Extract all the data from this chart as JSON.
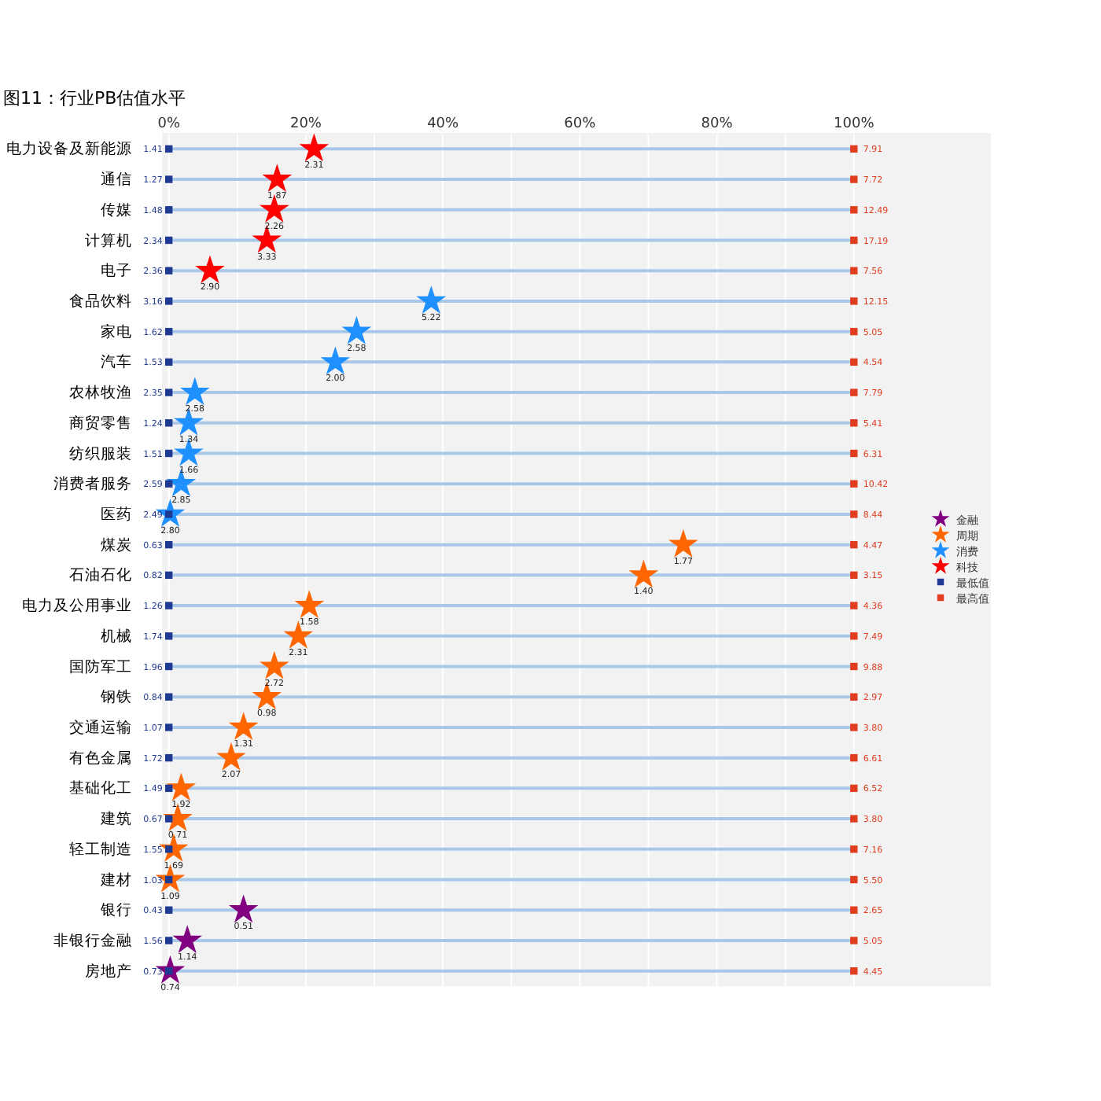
{
  "chart_data": {
    "type": "scatter",
    "orientation": "horizontal",
    "title": "图11：行业PB估值水平",
    "categories": [
      "电力设备及新能源",
      "通信",
      "传媒",
      "计算机",
      "电子",
      "食品饮料",
      "家电",
      "汽车",
      "农林牧渔",
      "商贸零售",
      "纺织服装",
      "消费者服务",
      "医药",
      "煤炭",
      "石油石化",
      "电力及公用事业",
      "机械",
      "国防军工",
      "钢铁",
      "交通运输",
      "有色金属",
      "基础化工",
      "建筑",
      "轻工制造",
      "建材",
      "银行",
      "非银行金融",
      "房地产"
    ],
    "xlim": [
      -1,
      120
    ],
    "xticks": [
      {
        "value": 0,
        "label": "0%"
      },
      {
        "value": 10,
        "label": null
      },
      {
        "value": 20,
        "label": "20%"
      },
      {
        "value": 30,
        "label": null
      },
      {
        "value": 40,
        "label": "40%"
      },
      {
        "value": 50,
        "label": null
      },
      {
        "value": 60,
        "label": "60%"
      },
      {
        "value": 70,
        "label": null
      },
      {
        "value": 80,
        "label": "80%"
      },
      {
        "value": 90,
        "label": null
      },
      {
        "value": 100,
        "label": "100%"
      }
    ],
    "grid": true,
    "legend": "right",
    "marker": "star",
    "series": [
      {
        "name": "金融",
        "color": "#800080",
        "values": [
          null,
          null,
          null,
          null,
          null,
          null,
          null,
          null,
          null,
          null,
          null,
          null,
          null,
          null,
          null,
          null,
          null,
          null,
          null,
          null,
          null,
          null,
          null,
          null,
          null,
          10.9,
          2.7,
          0.2
        ]
      },
      {
        "name": "周期",
        "color": "#ff6600",
        "values": [
          null,
          null,
          null,
          null,
          null,
          null,
          null,
          null,
          null,
          null,
          null,
          null,
          null,
          75.1,
          69.3,
          20.5,
          18.9,
          15.4,
          14.3,
          10.9,
          9.1,
          1.8,
          1.3,
          0.7,
          0.2,
          null,
          null,
          null
        ]
      },
      {
        "name": "消费",
        "color": "#1e90ff",
        "values": [
          null,
          null,
          null,
          null,
          null,
          38.3,
          27.4,
          24.3,
          3.8,
          2.9,
          2.9,
          1.8,
          0.2,
          null,
          null,
          null,
          null,
          null,
          null,
          null,
          null,
          null,
          null,
          null,
          null,
          null,
          null,
          null
        ]
      },
      {
        "name": "科技",
        "color": "#ff0000",
        "values": [
          21.2,
          15.8,
          15.4,
          14.3,
          6.0,
          null,
          null,
          null,
          null,
          null,
          null,
          null,
          null,
          null,
          null,
          null,
          null,
          null,
          null,
          null,
          null,
          null,
          null,
          null,
          null,
          null,
          null,
          null
        ]
      },
      {
        "name": "最低值",
        "color": "#1f3a93",
        "marker": "square",
        "values": [
          0,
          0,
          0,
          0,
          0,
          0,
          0,
          0,
          0,
          0,
          0,
          0,
          0,
          0,
          0,
          0,
          0,
          0,
          0,
          0,
          0,
          0,
          0,
          0,
          0,
          0,
          0,
          0
        ]
      },
      {
        "name": "最高值",
        "color": "#e03c1e",
        "marker": "square",
        "values": [
          100,
          100,
          100,
          100,
          100,
          100,
          100,
          100,
          100,
          100,
          100,
          100,
          100,
          100,
          100,
          100,
          100,
          100,
          100,
          100,
          100,
          100,
          100,
          100,
          100,
          100,
          100,
          100
        ]
      }
    ],
    "annotations": [
      {
        "text": "2.31",
        "x": 21.2,
        "y": "电力设备及新能源"
      },
      {
        "text": "1.87",
        "x": 15.8,
        "y": "通信"
      },
      {
        "text": "2.26",
        "x": 15.4,
        "y": "传媒"
      },
      {
        "text": "3.33",
        "x": 14.3,
        "y": "计算机"
      },
      {
        "text": "2.90",
        "x": 6.0,
        "y": "电子"
      },
      {
        "text": "5.22",
        "x": 38.3,
        "y": "食品饮料"
      },
      {
        "text": "2.58",
        "x": 27.4,
        "y": "家电"
      },
      {
        "text": "2.00",
        "x": 24.3,
        "y": "汽车"
      },
      {
        "text": "2.58",
        "x": 3.8,
        "y": "农林牧渔"
      },
      {
        "text": "1.34",
        "x": 2.9,
        "y": "商贸零售"
      },
      {
        "text": "1.66",
        "x": 2.9,
        "y": "纺织服装"
      },
      {
        "text": "2.85",
        "x": 1.8,
        "y": "消费者服务"
      },
      {
        "text": "2.80",
        "x": 0.2,
        "y": "医药"
      },
      {
        "text": "1.77",
        "x": 75.1,
        "y": "煤炭"
      },
      {
        "text": "1.40",
        "x": 69.3,
        "y": "石油石化"
      },
      {
        "text": "1.58",
        "x": 20.5,
        "y": "电力及公用事业"
      },
      {
        "text": "2.31",
        "x": 18.9,
        "y": "机械"
      },
      {
        "text": "2.72",
        "x": 15.4,
        "y": "国防军工"
      },
      {
        "text": "0.98",
        "x": 14.3,
        "y": "钢铁"
      },
      {
        "text": "1.31",
        "x": 10.9,
        "y": "交通运输"
      },
      {
        "text": "2.07",
        "x": 9.1,
        "y": "有色金属"
      },
      {
        "text": "1.92",
        "x": 1.8,
        "y": "基础化工"
      },
      {
        "text": "0.71",
        "x": 1.3,
        "y": "建筑"
      },
      {
        "text": "1.69",
        "x": 0.7,
        "y": "轻工制造"
      },
      {
        "text": "1.09",
        "x": 0.2,
        "y": "建材"
      },
      {
        "text": "0.51",
        "x": 10.9,
        "y": "银行"
      },
      {
        "text": "1.14",
        "x": 2.7,
        "y": "非银行金融"
      },
      {
        "text": "0.74",
        "x": 0.2,
        "y": "房地产"
      },
      {
        "text": "1.41",
        "x": 0,
        "y": "电力设备及新能源"
      },
      {
        "text": "1.27",
        "x": 0,
        "y": "通信"
      },
      {
        "text": "1.48",
        "x": 0,
        "y": "传媒"
      },
      {
        "text": "2.34",
        "x": 0,
        "y": "计算机"
      },
      {
        "text": "2.36",
        "x": 0,
        "y": "电子"
      },
      {
        "text": "3.16",
        "x": 0,
        "y": "食品饮料"
      },
      {
        "text": "1.62",
        "x": 0,
        "y": "家电"
      },
      {
        "text": "1.53",
        "x": 0,
        "y": "汽车"
      },
      {
        "text": "2.35",
        "x": 0,
        "y": "农林牧渔"
      },
      {
        "text": "1.24",
        "x": 0,
        "y": "商贸零售"
      },
      {
        "text": "1.51",
        "x": 0,
        "y": "纺织服装"
      },
      {
        "text": "2.59",
        "x": 0,
        "y": "消费者服务"
      },
      {
        "text": "2.49",
        "x": 0,
        "y": "医药"
      },
      {
        "text": "0.63",
        "x": 0,
        "y": "煤炭"
      },
      {
        "text": "0.82",
        "x": 0,
        "y": "石油石化"
      },
      {
        "text": "1.26",
        "x": 0,
        "y": "电力及公用事业"
      },
      {
        "text": "1.74",
        "x": 0,
        "y": "机械"
      },
      {
        "text": "1.96",
        "x": 0,
        "y": "国防军工"
      },
      {
        "text": "0.84",
        "x": 0,
        "y": "钢铁"
      },
      {
        "text": "1.07",
        "x": 0,
        "y": "交通运输"
      },
      {
        "text": "1.72",
        "x": 0,
        "y": "有色金属"
      },
      {
        "text": "1.49",
        "x": 0,
        "y": "基础化工"
      },
      {
        "text": "0.67",
        "x": 0,
        "y": "建筑"
      },
      {
        "text": "1.55",
        "x": 0,
        "y": "轻工制造"
      },
      {
        "text": "1.03",
        "x": 0,
        "y": "建材"
      },
      {
        "text": "0.43",
        "x": 0,
        "y": "银行"
      },
      {
        "text": "1.56",
        "x": 0,
        "y": "非银行金融"
      },
      {
        "text": "0.73",
        "x": 0,
        "y": "房地产"
      },
      {
        "text": "7.91",
        "x": 100,
        "y": "电力设备及新能源"
      },
      {
        "text": "7.72",
        "x": 100,
        "y": "通信"
      },
      {
        "text": "12.49",
        "x": 100,
        "y": "传媒"
      },
      {
        "text": "17.19",
        "x": 100,
        "y": "计算机"
      },
      {
        "text": "7.56",
        "x": 100,
        "y": "电子"
      },
      {
        "text": "12.15",
        "x": 100,
        "y": "食品饮料"
      },
      {
        "text": "5.05",
        "x": 100,
        "y": "家电"
      },
      {
        "text": "4.54",
        "x": 100,
        "y": "汽车"
      },
      {
        "text": "7.79",
        "x": 100,
        "y": "农林牧渔"
      },
      {
        "text": "5.41",
        "x": 100,
        "y": "商贸零售"
      },
      {
        "text": "6.31",
        "x": 100,
        "y": "纺织服装"
      },
      {
        "text": "10.42",
        "x": 100,
        "y": "消费者服务"
      },
      {
        "text": "8.44",
        "x": 100,
        "y": "医药"
      },
      {
        "text": "4.47",
        "x": 100,
        "y": "煤炭"
      },
      {
        "text": "3.15",
        "x": 100,
        "y": "石油石化"
      },
      {
        "text": "4.36",
        "x": 100,
        "y": "电力及公用事业"
      },
      {
        "text": "7.49",
        "x": 100,
        "y": "机械"
      },
      {
        "text": "9.88",
        "x": 100,
        "y": "国防军工"
      },
      {
        "text": "2.97",
        "x": 100,
        "y": "钢铁"
      },
      {
        "text": "3.80",
        "x": 100,
        "y": "交通运输"
      },
      {
        "text": "6.61",
        "x": 100,
        "y": "有色金属"
      },
      {
        "text": "6.52",
        "x": 100,
        "y": "基础化工"
      },
      {
        "text": "3.80",
        "x": 100,
        "y": "建筑"
      },
      {
        "text": "7.16",
        "x": 100,
        "y": "轻工制造"
      },
      {
        "text": "5.50",
        "x": 100,
        "y": "建材"
      },
      {
        "text": "2.65",
        "x": 100,
        "y": "银行"
      },
      {
        "text": "5.05",
        "x": 100,
        "y": "非银行金融"
      },
      {
        "text": "4.45",
        "x": 100,
        "y": "房地产"
      }
    ]
  }
}
